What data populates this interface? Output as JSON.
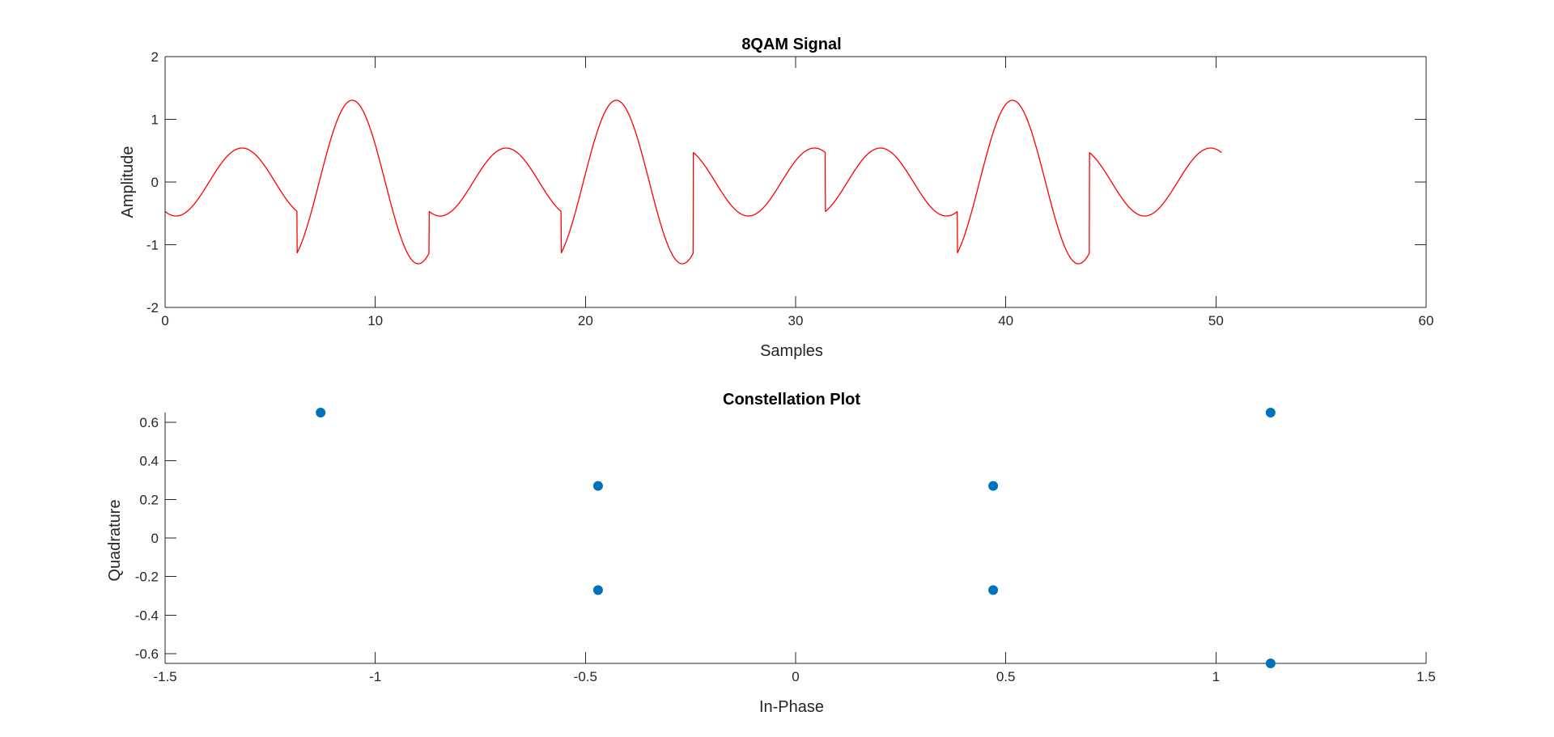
{
  "chart_data": [
    {
      "type": "line",
      "title": "8QAM Signal",
      "xlabel": "Samples",
      "ylabel": "Amplitude",
      "xlim": [
        0,
        60
      ],
      "ylim": [
        -2,
        2
      ],
      "xticks": [
        "0",
        "10",
        "20",
        "30",
        "40",
        "50",
        "60"
      ],
      "yticks": [
        "-2",
        "-1",
        "0",
        "1",
        "2"
      ],
      "box": true,
      "grid": false,
      "line_color": "#ff0000",
      "series": [
        {
          "symbols": [
            {
              "I": -0.47,
              "Q": -0.27
            },
            {
              "I": -1.13,
              "Q": 0.65
            },
            {
              "I": -0.47,
              "Q": -0.27
            },
            {
              "I": -1.13,
              "Q": 0.65
            },
            {
              "I": 0.47,
              "Q": -0.27
            },
            {
              "I": -0.47,
              "Q": 0.27
            },
            {
              "I": -1.13,
              "Q": 0.65
            },
            {
              "I": 0.47,
              "Q": -0.27
            }
          ],
          "symbol_duration": 6.2832,
          "x_end": 50.27
        }
      ]
    },
    {
      "type": "scatter",
      "title": "Constellation Plot",
      "xlabel": "In-Phase",
      "ylabel": "Quadrature",
      "xlim": [
        -1.5,
        1.5
      ],
      "ylim": [
        -0.65,
        0.65
      ],
      "xticks": [
        "-1.5",
        "-1",
        "-0.5",
        "0",
        "0.5",
        "1",
        "1.5"
      ],
      "yticks": [
        "-0.6",
        "-0.4",
        "-0.2",
        "0",
        "0.2",
        "0.4",
        "0.6"
      ],
      "box": false,
      "grid": false,
      "marker_color": "#0072bd",
      "points": [
        {
          "x": -1.13,
          "y": 0.65
        },
        {
          "x": -0.47,
          "y": 0.27
        },
        {
          "x": -0.47,
          "y": -0.27
        },
        {
          "x": 0.47,
          "y": 0.27
        },
        {
          "x": 0.47,
          "y": -0.27
        },
        {
          "x": 1.13,
          "y": 0.65
        },
        {
          "x": 1.13,
          "y": -0.65
        }
      ]
    }
  ]
}
